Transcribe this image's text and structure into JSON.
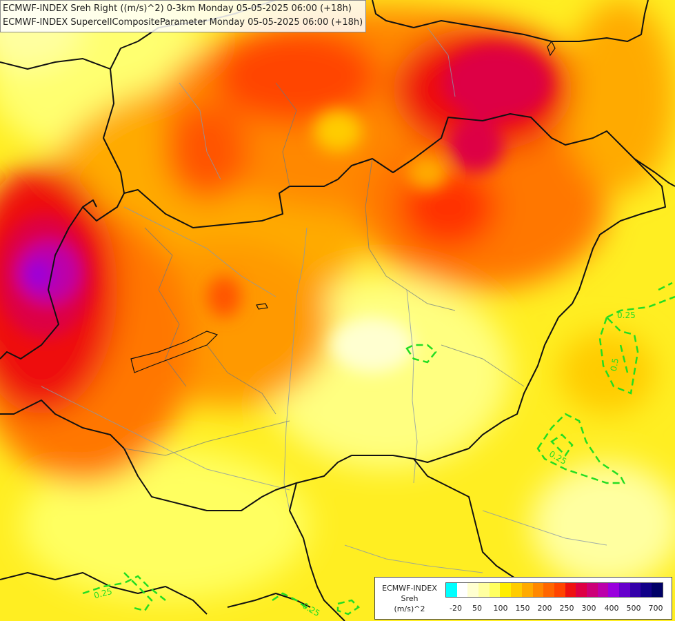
{
  "header": {
    "line1": "ECMWF-INDEX Sreh Right ((m/s)^2) 0-3km Monday 05-05-2025 06:00 (+18h)",
    "line2": "ECMWF-INDEX SupercellCompositeParameter Monday 05-05-2025 06:00 (+18h)"
  },
  "contour_labels": [
    "0.25",
    "0.5",
    "0.25",
    "0.25",
    "0.25"
  ],
  "legend": {
    "title_lines": [
      "ECMWF-INDEX",
      "Sreh",
      "(m/s)^2"
    ],
    "ticks": [
      "-20",
      "50",
      "100",
      "150",
      "200",
      "250",
      "300",
      "400",
      "500",
      "700"
    ],
    "colors": [
      "#00ffff",
      "#ffffff",
      "#ffffd0",
      "#ffffa0",
      "#ffff60",
      "#ffee00",
      "#ffcc00",
      "#ffaa00",
      "#ff8800",
      "#ff6600",
      "#ff4400",
      "#ee1111",
      "#dd0044",
      "#cc0077",
      "#bb00aa",
      "#9900dd",
      "#6600cc",
      "#3300aa",
      "#110088",
      "#000066"
    ]
  }
}
